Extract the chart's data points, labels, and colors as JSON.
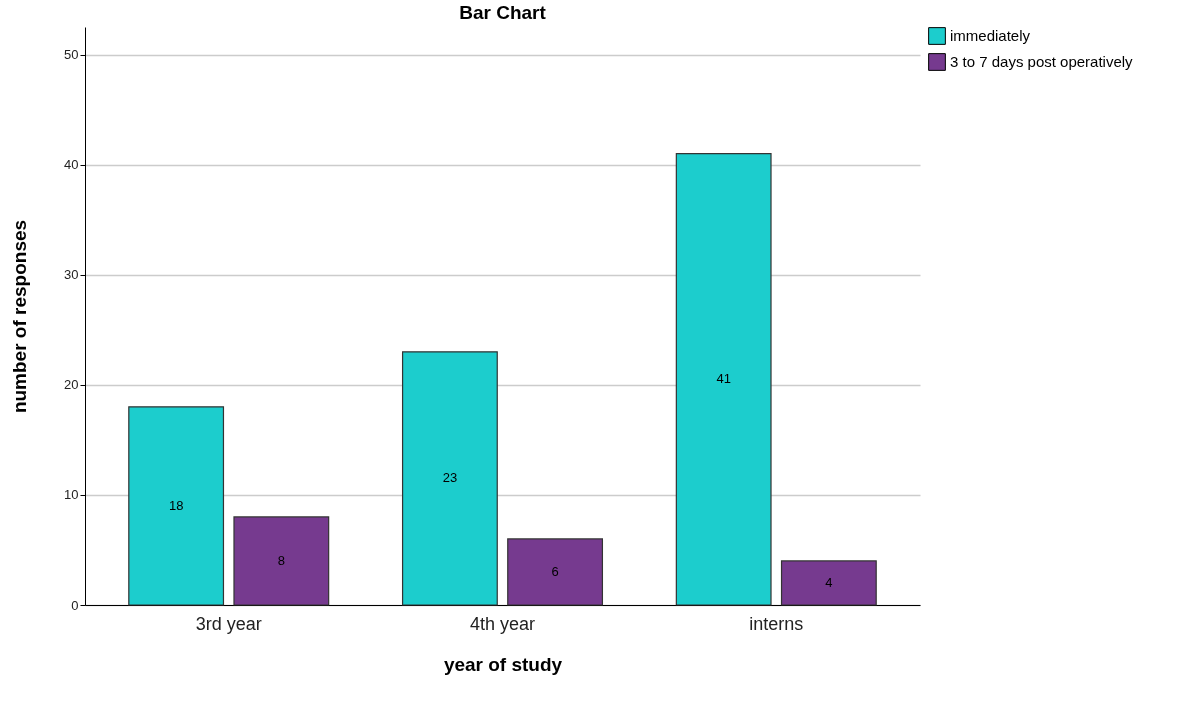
{
  "chart_data": {
    "type": "bar",
    "title": "Bar Chart",
    "xlabel": "year of study",
    "ylabel": "number of responses",
    "categories": [
      "3rd year",
      "4th year",
      "interns"
    ],
    "series": [
      {
        "name": "immediately",
        "color": "#1ccdcd",
        "values": [
          18,
          23,
          41
        ]
      },
      {
        "name": "3 to 7 days post operatively",
        "color": "#763a8f",
        "values": [
          8,
          6,
          4
        ]
      }
    ],
    "ylim": [
      0,
      52.5
    ],
    "yticks": [
      0,
      10,
      20,
      30,
      40,
      50
    ],
    "grid": "y",
    "legend": "top right",
    "data_labels": true
  }
}
